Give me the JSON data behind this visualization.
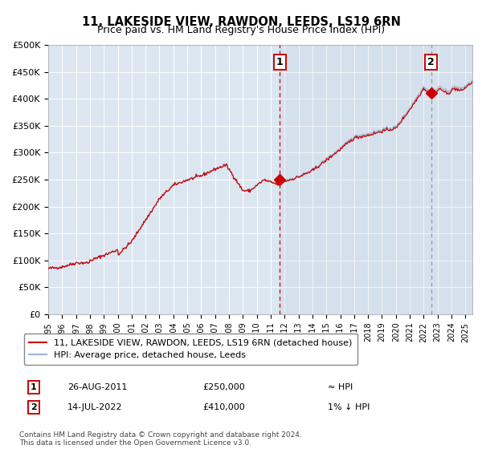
{
  "title1": "11, LAKESIDE VIEW, RAWDON, LEEDS, LS19 6RN",
  "title2": "Price paid vs. HM Land Registry's House Price Index (HPI)",
  "ylabel_ticks": [
    "£0",
    "£50K",
    "£100K",
    "£150K",
    "£200K",
    "£250K",
    "£300K",
    "£350K",
    "£400K",
    "£450K",
    "£500K"
  ],
  "ytick_vals": [
    0,
    50000,
    100000,
    150000,
    200000,
    250000,
    300000,
    350000,
    400000,
    450000,
    500000
  ],
  "ylim": [
    0,
    500000
  ],
  "xlim_start": 1995.0,
  "xlim_end": 2025.5,
  "hpi_line_color": "#9ab7d3",
  "price_line_color": "#cc0000",
  "bg_color": "#dce6f1",
  "marker1_date": 2011.65,
  "marker1_price": 250000,
  "marker2_date": 2022.54,
  "marker2_price": 410000,
  "vline1_x": 2011.65,
  "vline2_x": 2022.54,
  "legend_label1": "11, LAKESIDE VIEW, RAWDON, LEEDS, LS19 6RN (detached house)",
  "legend_label2": "HPI: Average price, detached house, Leeds",
  "ann1_date": "26-AUG-2011",
  "ann1_price": "£250,000",
  "ann1_vs": "≈ HPI",
  "ann2_date": "14-JUL-2022",
  "ann2_price": "£410,000",
  "ann2_vs": "1% ↓ HPI",
  "footer": "Contains HM Land Registry data © Crown copyright and database right 2024.\nThis data is licensed under the Open Government Licence v3.0.",
  "grid_color": "#ffffff",
  "title_fontsize": 10.5,
  "subtitle_fontsize": 9
}
